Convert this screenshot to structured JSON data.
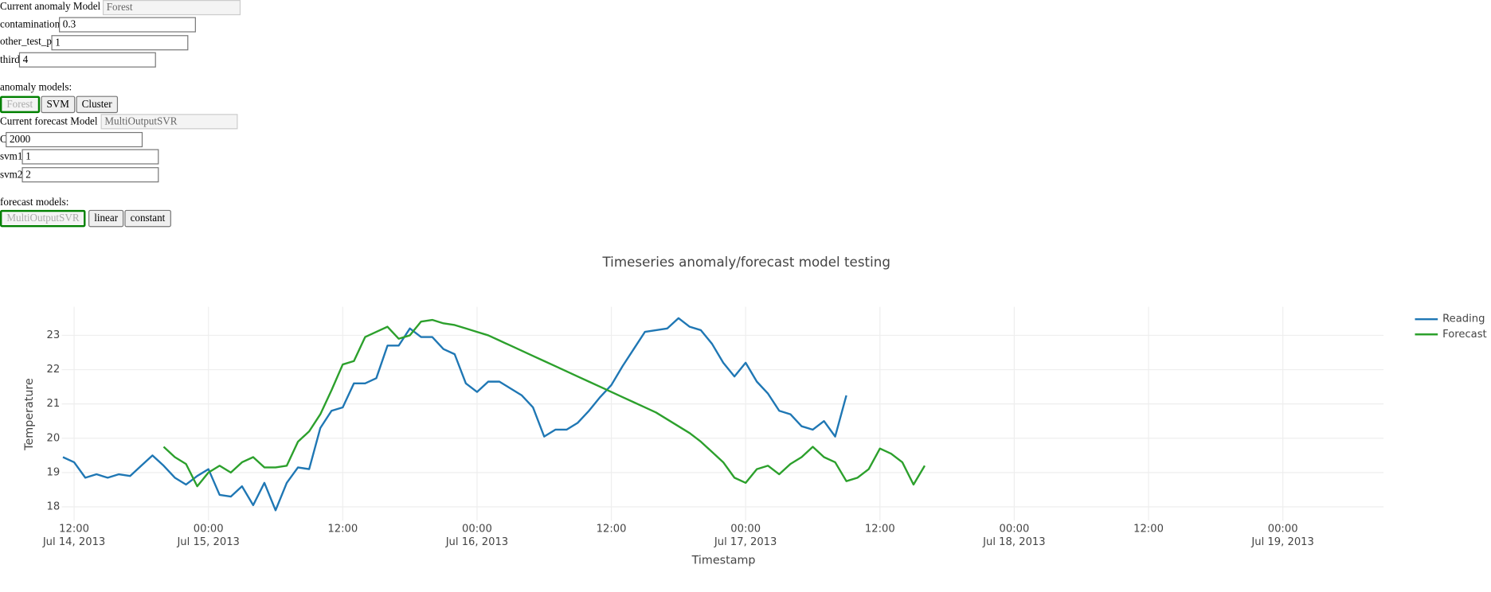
{
  "anomaly": {
    "current_label": "Current anomaly Model",
    "current_value": "Forest",
    "params": [
      {
        "label": "contamination",
        "value": "0.3"
      },
      {
        "label": "other_test_p",
        "value": "1"
      },
      {
        "label": "third",
        "value": "4"
      }
    ],
    "models_label": "anomaly models:",
    "models": [
      "Forest",
      "SVM",
      "Cluster"
    ]
  },
  "forecast": {
    "current_label": "Current forecast Model",
    "current_value": "MultiOutputSVR",
    "params": [
      {
        "label": "C",
        "value": "2000"
      },
      {
        "label": "svm1",
        "value": "1"
      },
      {
        "label": "svm2",
        "value": "2"
      }
    ],
    "models_label": "forecast models:",
    "models": [
      "MultiOutputSVR",
      "linear",
      "constant"
    ]
  },
  "chart_data": {
    "type": "line",
    "title": "Timeseries anomaly/forecast model testing",
    "x_label": "Timestamp",
    "y_label": "Temperature",
    "grid": true,
    "legend": "top-right",
    "x": [
      "2013-07-14 11:00",
      "2013-07-14 12:00",
      "2013-07-14 13:00",
      "2013-07-14 14:00",
      "2013-07-14 15:00",
      "2013-07-14 16:00",
      "2013-07-14 17:00",
      "2013-07-14 18:00",
      "2013-07-14 19:00",
      "2013-07-14 20:00",
      "2013-07-14 21:00",
      "2013-07-14 22:00",
      "2013-07-14 23:00",
      "2013-07-15 00:00",
      "2013-07-15 01:00",
      "2013-07-15 02:00",
      "2013-07-15 03:00",
      "2013-07-15 04:00",
      "2013-07-15 05:00",
      "2013-07-15 06:00",
      "2013-07-15 07:00",
      "2013-07-15 08:00",
      "2013-07-15 09:00",
      "2013-07-15 10:00",
      "2013-07-15 11:00",
      "2013-07-15 12:00",
      "2013-07-15 13:00",
      "2013-07-15 14:00",
      "2013-07-15 15:00",
      "2013-07-15 16:00",
      "2013-07-15 17:00",
      "2013-07-15 18:00",
      "2013-07-15 19:00",
      "2013-07-15 20:00",
      "2013-07-15 21:00",
      "2013-07-15 22:00",
      "2013-07-15 23:00",
      "2013-07-16 00:00",
      "2013-07-16 01:00",
      "2013-07-16 02:00",
      "2013-07-16 03:00",
      "2013-07-16 04:00",
      "2013-07-16 05:00",
      "2013-07-16 06:00",
      "2013-07-16 07:00",
      "2013-07-16 08:00",
      "2013-07-16 09:00",
      "2013-07-16 10:00",
      "2013-07-16 11:00",
      "2013-07-16 12:00",
      "2013-07-16 13:00",
      "2013-07-16 14:00",
      "2013-07-16 15:00",
      "2013-07-16 16:00",
      "2013-07-16 17:00",
      "2013-07-16 18:00",
      "2013-07-16 19:00",
      "2013-07-16 20:00",
      "2013-07-16 21:00",
      "2013-07-16 22:00",
      "2013-07-16 23:00",
      "2013-07-17 00:00",
      "2013-07-17 01:00",
      "2013-07-17 02:00",
      "2013-07-17 03:00",
      "2013-07-17 04:00",
      "2013-07-17 05:00",
      "2013-07-17 06:00",
      "2013-07-17 07:00",
      "2013-07-17 08:00",
      "2013-07-17 09:00",
      "2013-07-17 10:00",
      "2013-07-17 11:00",
      "2013-07-17 12:00",
      "2013-07-17 13:00",
      "2013-07-17 14:00",
      "2013-07-17 15:00",
      "2013-07-17 16:00"
    ],
    "series": [
      {
        "name": "Reading",
        "color": "#1f77b4",
        "values": [
          19.45,
          19.3,
          18.85,
          18.95,
          18.85,
          18.95,
          18.9,
          19.2,
          19.5,
          19.2,
          18.85,
          18.65,
          18.9,
          19.1,
          18.35,
          18.3,
          18.6,
          18.05,
          18.7,
          17.9,
          18.7,
          19.15,
          19.1,
          20.3,
          20.8,
          20.9,
          21.6,
          21.6,
          21.75,
          22.7,
          22.7,
          23.2,
          22.95,
          22.95,
          22.6,
          22.45,
          21.6,
          21.35,
          21.65,
          21.65,
          21.45,
          21.25,
          20.9,
          20.05,
          20.25,
          20.25,
          20.45,
          20.8,
          21.2,
          21.55,
          22.1,
          22.6,
          23.1,
          23.15,
          23.2,
          23.5,
          23.25,
          23.15,
          22.75,
          22.2,
          21.8,
          22.2,
          21.65,
          21.3,
          20.8,
          20.7,
          20.35,
          20.25,
          20.5,
          20.05,
          21.25,
          null,
          null,
          null,
          null,
          null,
          null,
          null
        ]
      },
      {
        "name": "Forecast",
        "color": "#2ca02c",
        "values": [
          null,
          null,
          null,
          null,
          null,
          null,
          null,
          null,
          null,
          19.75,
          19.45,
          19.25,
          18.6,
          19.0,
          19.2,
          19.0,
          19.3,
          19.45,
          19.15,
          19.15,
          19.2,
          19.9,
          20.2,
          20.7,
          21.4,
          22.15,
          22.25,
          22.95,
          23.1,
          23.25,
          22.9,
          23.0,
          23.4,
          23.45,
          23.35,
          23.3,
          23.2,
          23.1,
          23.0,
          22.85,
          22.7,
          22.55,
          22.4,
          22.25,
          22.1,
          21.95,
          21.8,
          21.65,
          21.5,
          21.35,
          21.2,
          21.05,
          20.9,
          20.75,
          20.55,
          20.35,
          20.15,
          19.9,
          19.6,
          19.3,
          18.85,
          18.7,
          19.1,
          19.2,
          18.95,
          19.25,
          19.45,
          19.75,
          19.45,
          19.3,
          18.75,
          18.85,
          19.1,
          19.7,
          19.55,
          19.3,
          18.65,
          19.2
        ]
      }
    ],
    "xlim": [
      "2013-07-14 10:54",
      "2013-07-19 09:00"
    ],
    "xticks": [
      {
        "value": "2013-07-14 12:00",
        "label": [
          "12:00",
          "Jul 14, 2013"
        ]
      },
      {
        "value": "2013-07-15 00:00",
        "label": [
          "00:00",
          "Jul 15, 2013"
        ]
      },
      {
        "value": "2013-07-15 12:00",
        "label": [
          "12:00"
        ]
      },
      {
        "value": "2013-07-16 00:00",
        "label": [
          "00:00",
          "Jul 16, 2013"
        ]
      },
      {
        "value": "2013-07-16 12:00",
        "label": [
          "12:00"
        ]
      },
      {
        "value": "2013-07-17 00:00",
        "label": [
          "00:00",
          "Jul 17, 2013"
        ]
      },
      {
        "value": "2013-07-17 12:00",
        "label": [
          "12:00"
        ]
      },
      {
        "value": "2013-07-18 00:00",
        "label": [
          "00:00",
          "Jul 18, 2013"
        ]
      },
      {
        "value": "2013-07-18 12:00",
        "label": [
          "12:00"
        ]
      },
      {
        "value": "2013-07-19 00:00",
        "label": [
          "00:00",
          "Jul 19, 2013"
        ]
      }
    ],
    "ylim": [
      17.6,
      23.83
    ],
    "yticks": [
      18,
      19,
      20,
      21,
      22,
      23
    ]
  }
}
